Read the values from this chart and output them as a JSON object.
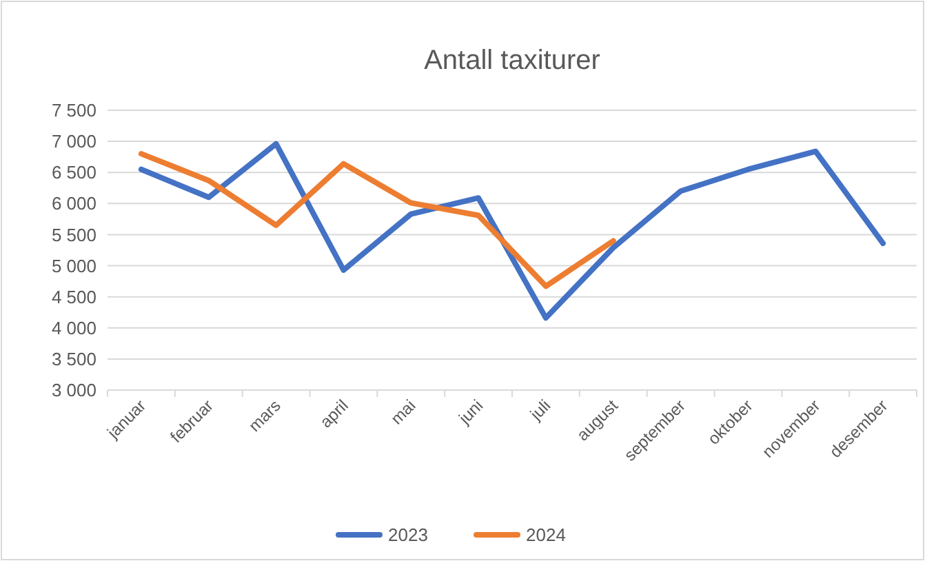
{
  "chart_data": {
    "type": "line",
    "title": "Antall taxiturer",
    "categories": [
      "januar",
      "februar",
      "mars",
      "april",
      "mai",
      "juni",
      "juli",
      "august",
      "september",
      "oktober",
      "november",
      "desember"
    ],
    "series": [
      {
        "name": "2023",
        "color": "#4472c4",
        "values": [
          6550,
          6100,
          6960,
          4930,
          5830,
          6090,
          4160,
          5290,
          6200,
          6550,
          6840,
          5360
        ]
      },
      {
        "name": "2024",
        "color": "#ed7d31",
        "values": [
          6800,
          6370,
          5650,
          6640,
          6010,
          5810,
          4670,
          5400,
          null,
          null,
          null,
          null
        ]
      }
    ],
    "ylim": [
      3000,
      7500
    ],
    "yticks": [
      {
        "value": 3000,
        "label": "3 000"
      },
      {
        "value": 3500,
        "label": "3 500"
      },
      {
        "value": 4000,
        "label": "4 000"
      },
      {
        "value": 4500,
        "label": "4 500"
      },
      {
        "value": 5000,
        "label": "5 000"
      },
      {
        "value": 5500,
        "label": "5 500"
      },
      {
        "value": 6000,
        "label": "6 000"
      },
      {
        "value": 6500,
        "label": "6 500"
      },
      {
        "value": 7000,
        "label": "7 000"
      },
      {
        "value": 7500,
        "label": "7 500"
      }
    ],
    "grid": "y",
    "legend": "bottom",
    "marker": "none",
    "line_style": "solid"
  }
}
